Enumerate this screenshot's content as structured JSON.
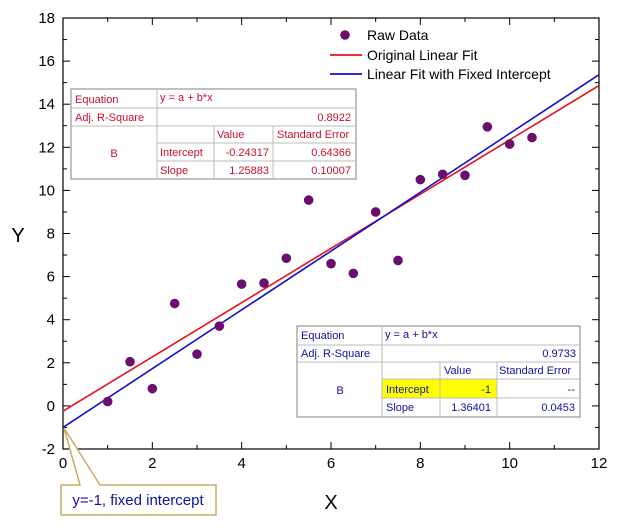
{
  "chart_data": {
    "type": "scatter",
    "xlabel": "X",
    "ylabel": "Y",
    "xlim": [
      0,
      12
    ],
    "ylim": [
      -2,
      18
    ],
    "xticks": [
      "0",
      "2",
      "4",
      "6",
      "8",
      "10",
      "12"
    ],
    "yticks": [
      "-2",
      "0",
      "2",
      "4",
      "6",
      "8",
      "10",
      "12",
      "14",
      "16",
      "18"
    ],
    "grid": false,
    "legend_position": "top-right",
    "legend": [
      "Raw Data",
      "Original Linear Fit",
      "Linear Fit with Fixed Intercept"
    ],
    "series": [
      {
        "name": "Raw Data",
        "kind": "scatter",
        "color": "#6a0f6b",
        "x": [
          1,
          1.5,
          2,
          2.5,
          3,
          3.5,
          4,
          4.5,
          5,
          5.5,
          6,
          6.5,
          7,
          7.5,
          8,
          8.5,
          9,
          9.5,
          10,
          10.5
        ],
        "y": [
          0.2,
          2.05,
          0.8,
          4.75,
          2.4,
          3.7,
          5.65,
          5.7,
          6.85,
          9.55,
          6.6,
          6.15,
          9.0,
          6.75,
          10.5,
          10.75,
          10.7,
          12.95,
          12.15,
          12.45
        ]
      },
      {
        "name": "Original Linear Fit",
        "kind": "line",
        "color": "#e8101c",
        "intercept": -0.24317,
        "slope": 1.25883
      },
      {
        "name": "Linear Fit with Fixed Intercept",
        "kind": "line",
        "color": "#1010c8",
        "intercept": -1,
        "slope": 1.36401
      }
    ],
    "annotation": {
      "text": "y=-1, fixed intercept",
      "point": [
        0,
        -1
      ]
    },
    "tables": [
      {
        "id": "original",
        "equation_label": "Equation",
        "equation": "y = a + b*x",
        "adj_r_label": "Adj. R-Square",
        "adj_r_value": "0.8922",
        "value_header": "Value",
        "se_header": "Standard Error",
        "group_label": "B",
        "rows": [
          {
            "name": "Intercept",
            "value": "-0.24317",
            "se": "0.64366"
          },
          {
            "name": "Slope",
            "value": "1.25883",
            "se": "0.10007"
          }
        ]
      },
      {
        "id": "fixed",
        "equation_label": "Equation",
        "equation": "y = a + b*x",
        "adj_r_label": "Adj. R-Square",
        "adj_r_value": "0.9733",
        "value_header": "Value",
        "se_header": "Standard Error",
        "group_label": "B",
        "rows": [
          {
            "name": "Intercept",
            "value": "-1",
            "se": "--"
          },
          {
            "name": "Slope",
            "value": "1.36401",
            "se": "0.0453"
          }
        ]
      }
    ]
  }
}
